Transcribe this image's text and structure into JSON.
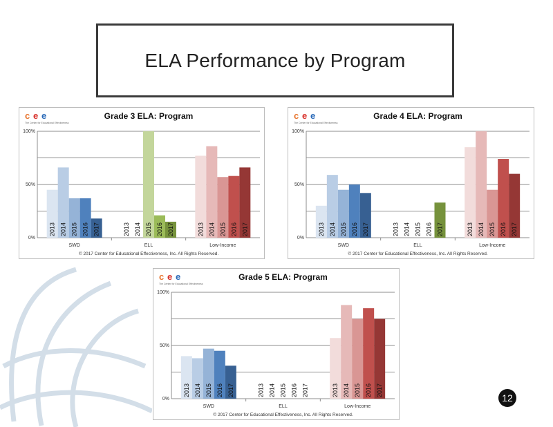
{
  "slide": {
    "title": "ELA Performance  by Program",
    "page_number": "12"
  },
  "logo": {
    "letters": [
      "c",
      "e",
      "e"
    ],
    "letter_colors": [
      "#e8752e",
      "#d8302a",
      "#2a6ab8"
    ],
    "tagline": "The Center for Educational Effectiveness"
  },
  "colors": {
    "swd": [
      "#dbe5f1",
      "#b9cde5",
      "#95b3d7",
      "#4f81bd",
      "#376092"
    ],
    "ell": [
      "#ebf1de",
      "#d7e4bd",
      "#c3d69b",
      "#9bbb59",
      "#76923c"
    ],
    "low_income": [
      "#f2dcdb",
      "#e6b9b8",
      "#d99694",
      "#c0504d",
      "#953735"
    ]
  },
  "chart_data": [
    {
      "type": "bar",
      "title": "Grade 3 ELA: Program",
      "categories": [
        "SWD",
        "ELL",
        "Low-Income"
      ],
      "series": [
        {
          "name": "2013",
          "values": [
            45,
            null,
            77
          ]
        },
        {
          "name": "2014",
          "values": [
            66,
            null,
            86
          ]
        },
        {
          "name": "2015",
          "values": [
            37,
            100,
            57
          ]
        },
        {
          "name": "2016",
          "values": [
            37,
            21,
            58
          ]
        },
        {
          "name": "2017",
          "values": [
            18,
            15,
            66
          ]
        }
      ],
      "yticks": [
        "0%",
        "50%",
        "100%"
      ],
      "ylim": [
        0,
        100
      ],
      "grid": true,
      "footer": "© 2017 Center for Educational Effectiveness, Inc. All Rights Reserved."
    },
    {
      "type": "bar",
      "title": "Grade 4 ELA: Program",
      "categories": [
        "SWD",
        "ELL",
        "Low-Income"
      ],
      "series": [
        {
          "name": "2013",
          "values": [
            30,
            null,
            85
          ]
        },
        {
          "name": "2014",
          "values": [
            59,
            null,
            100
          ]
        },
        {
          "name": "2015",
          "values": [
            45,
            null,
            45
          ]
        },
        {
          "name": "2016",
          "values": [
            50,
            null,
            74
          ]
        },
        {
          "name": "2017",
          "values": [
            42,
            33,
            60
          ]
        }
      ],
      "yticks": [
        "0%",
        "50%",
        "100%"
      ],
      "ylim": [
        0,
        100
      ],
      "grid": true,
      "footer": "© 2017 Center for Educational Effectiveness, Inc. All Rights Reserved."
    },
    {
      "type": "bar",
      "title": "Grade 5 ELA: Program",
      "categories": [
        "SWD",
        "ELL",
        "Low-Income"
      ],
      "series": [
        {
          "name": "2013",
          "values": [
            40,
            null,
            57
          ]
        },
        {
          "name": "2014",
          "values": [
            38,
            null,
            88
          ]
        },
        {
          "name": "2015",
          "values": [
            47,
            null,
            75
          ]
        },
        {
          "name": "2016",
          "values": [
            45,
            null,
            85
          ]
        },
        {
          "name": "2017",
          "values": [
            31,
            null,
            75
          ]
        }
      ],
      "yticks": [
        "0%",
        "50%",
        "100%"
      ],
      "ylim": [
        0,
        100
      ],
      "grid": true,
      "footer": "© 2017 Center for Educational Effectiveness, Inc. All Rights Reserved."
    }
  ]
}
